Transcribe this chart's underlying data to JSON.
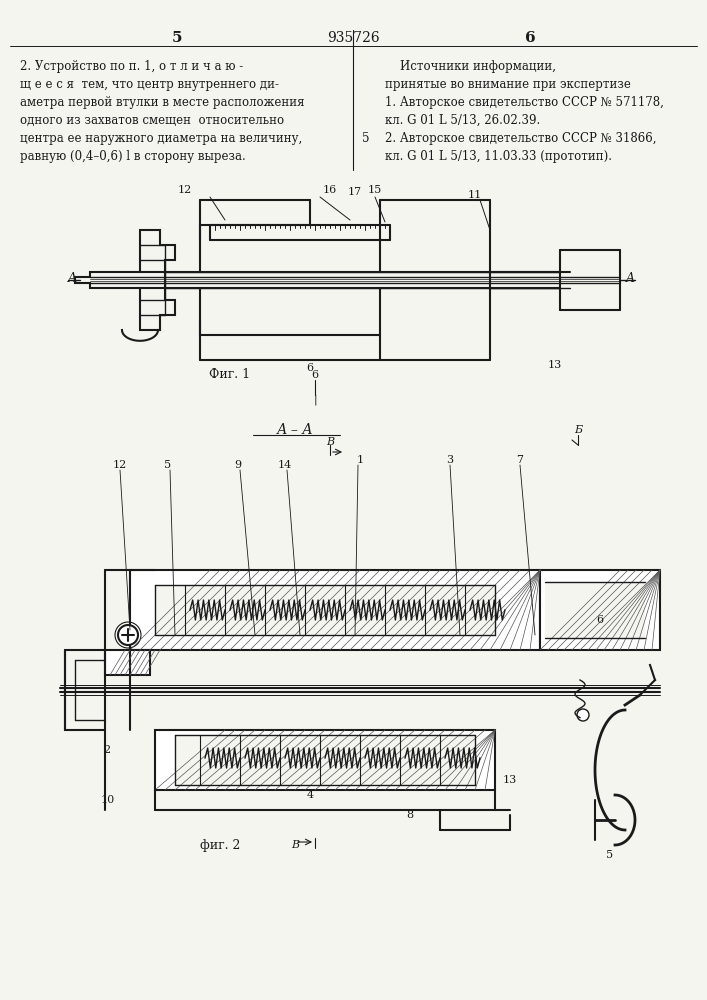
{
  "page_number_left": "5",
  "page_number_right": "6",
  "patent_number": "935726",
  "left_text": [
    "2. Устройство по п. 1, о т л и ч а ю -",
    "щ е е с я  тем, что центр внутреннего ди-",
    "аметра первой втулки в месте расположения",
    "одного из захватов смещен  относительно",
    "центра ее наружного диаметра на величину,",
    "равную (0,4–0,6) l в сторону выреза."
  ],
  "right_header": "Источники информации,",
  "right_subheader": "принятые во внимание при экспертизе",
  "right_ref1": "1. Авторское свидетельство СССР № 571178,",
  "right_ref1b": "кл. G 01 L 5/13, 26.02.39.",
  "right_ref2_pre": "5",
  "right_ref2": "2. Авторское свидетельство СССР № 31866,",
  "right_ref2b": "кл. G 01 L 5/13, 11.03.33 (прототип).",
  "fig1_label": "Фиг. 1",
  "fig2_label": "фиг. 2",
  "section_aa": "А – А",
  "section_b_top": "Б",
  "section_b_label": "В",
  "bg_color": "#f5f5f0",
  "line_color": "#1a1a1a",
  "hatch_color": "#1a1a1a",
  "text_color": "#1a1a1a"
}
